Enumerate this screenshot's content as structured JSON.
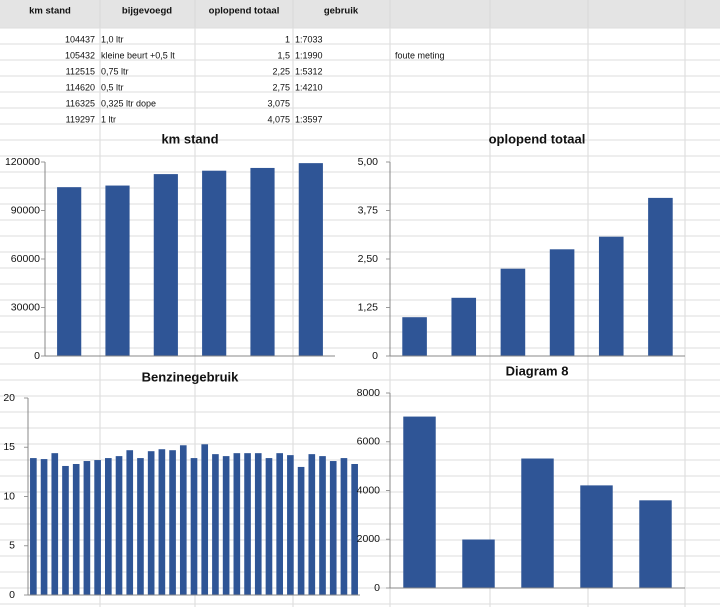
{
  "table": {
    "header": [
      "km stand",
      "bijgevoegd",
      "oplopend totaal",
      "gebruik"
    ],
    "rows": [
      [
        "104437",
        "1,0 ltr",
        "1",
        "1:7033"
      ],
      [
        "105432",
        "kleine beurt +0,5 lt",
        "1,5",
        "1:1990",
        "foute meting"
      ],
      [
        "112515",
        "0,75 ltr",
        "2,25",
        "1:5312"
      ],
      [
        "114620",
        "0,5 ltr",
        "2,75",
        "1:4210"
      ],
      [
        "116325",
        "0,325 ltr dope",
        "3,075"
      ],
      [
        "119297",
        "1 ltr",
        "4,075",
        "1:3597"
      ]
    ]
  },
  "chart_data": [
    {
      "type": "bar",
      "title": "km stand",
      "color": "#2f5596",
      "values": [
        104437,
        105432,
        112515,
        114620,
        116325,
        119297
      ],
      "ylim": [
        0,
        120000
      ],
      "yticks": [
        0,
        30000,
        60000,
        90000,
        120000
      ],
      "grid": false
    },
    {
      "type": "bar",
      "title": "oplopend totaal",
      "color": "#2f5596",
      "values": [
        1,
        1.5,
        2.25,
        2.75,
        3.075,
        4.075
      ],
      "ylim": [
        0,
        5
      ],
      "yticks": [
        0,
        {
          "value": 1.25,
          "label": "1,25"
        },
        {
          "value": 2.5,
          "label": "2,50"
        },
        {
          "value": 3.75,
          "label": "3,75"
        },
        {
          "value": 5,
          "label": "5,00"
        }
      ],
      "grid": false
    },
    {
      "type": "bar",
      "title": "Benzinegebruik",
      "color": "#2f5596",
      "values": [
        13.9,
        13.8,
        14.4,
        13.1,
        13.3,
        13.6,
        13.7,
        13.9,
        14.1,
        14.7,
        13.9,
        14.6,
        14.8,
        14.7,
        15.2,
        13.9,
        15.3,
        14.3,
        14.1,
        14.4,
        14.4,
        14.4,
        13.9,
        14.4,
        14.2,
        13.0,
        14.3,
        14.1,
        13.6,
        13.9,
        13.3
      ],
      "ylim": [
        0,
        20
      ],
      "yticks": [
        0,
        5,
        10,
        15,
        20
      ],
      "grid": false
    },
    {
      "type": "bar",
      "title": "Diagram 8",
      "color": "#2f5596",
      "values": [
        7033,
        1990,
        5312,
        4210,
        3597
      ],
      "ylim": [
        0,
        8000
      ],
      "yticks": [
        0,
        2000,
        4000,
        6000,
        8000
      ],
      "grid": false
    }
  ]
}
